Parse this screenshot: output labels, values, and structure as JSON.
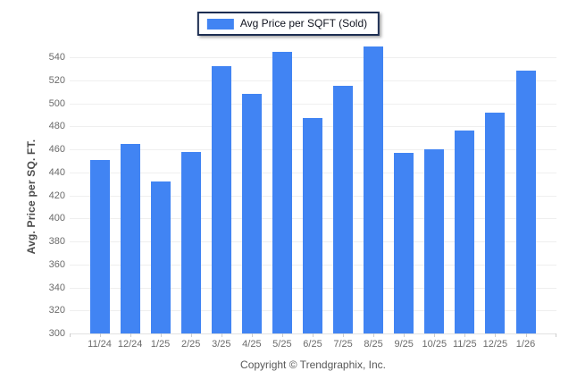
{
  "legend": {
    "label": "Avg Price per SQFT (Sold)",
    "swatch_color": "#4184F3"
  },
  "footer": {
    "copyright": "Copyright © Trendgraphix, Inc."
  },
  "chart_data": {
    "type": "bar",
    "title": "",
    "xlabel": "",
    "ylabel": "Avg. Price per SQ. FT.",
    "categories": [
      "11/24",
      "12/24",
      "1/25",
      "2/25",
      "3/25",
      "4/25",
      "5/25",
      "6/25",
      "7/25",
      "8/25",
      "9/25",
      "10/25",
      "11/25",
      "12/25",
      "1/26"
    ],
    "series": [
      {
        "name": "Avg Price per SQFT (Sold)",
        "color": "#4184F3",
        "values": [
          451,
          465,
          432,
          458,
          532,
          508,
          545,
          487,
          515,
          549,
          457,
          460,
          476,
          492,
          528
        ]
      }
    ],
    "ylim": [
      300,
      560
    ],
    "yticks": [
      300,
      320,
      340,
      360,
      380,
      400,
      420,
      440,
      460,
      480,
      500,
      520,
      540
    ],
    "grid": true,
    "legend_position": "top"
  }
}
